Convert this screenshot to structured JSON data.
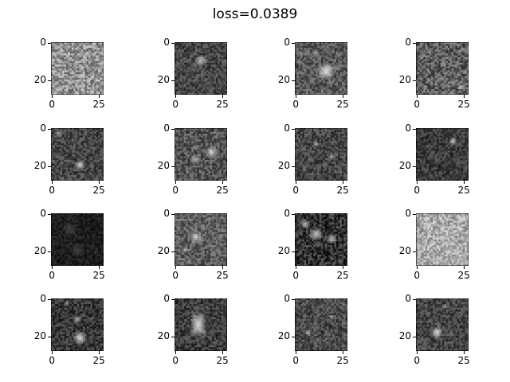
{
  "figure": {
    "title": "loss=0.0389",
    "panel_count": 16,
    "grid": "4x4",
    "colormap": "gray",
    "axes": {
      "x_tick_labels": [
        "0",
        "25"
      ],
      "y_tick_labels": [
        "0",
        "20"
      ],
      "image_size": [
        28,
        28
      ]
    },
    "panel_descriptions": [
      "light gray noisy texture",
      "dark gray with bright spots upper center",
      "gray with bright blob center-right",
      "mid gray noisy texture",
      "dark gray with bright spot lower center",
      "gray with bright spots center",
      "dark gray with faint bright spots",
      "dark gray with bright spot upper right",
      "very dark with faint shapes",
      "gray with bright streak center",
      "dark with scattered bright blobs",
      "light gray noisy texture",
      "dark with bright blobs lower center",
      "dark with bright rectangular block",
      "dark gray with faint bright spots",
      "dark gray with bright patch lower left"
    ]
  }
}
